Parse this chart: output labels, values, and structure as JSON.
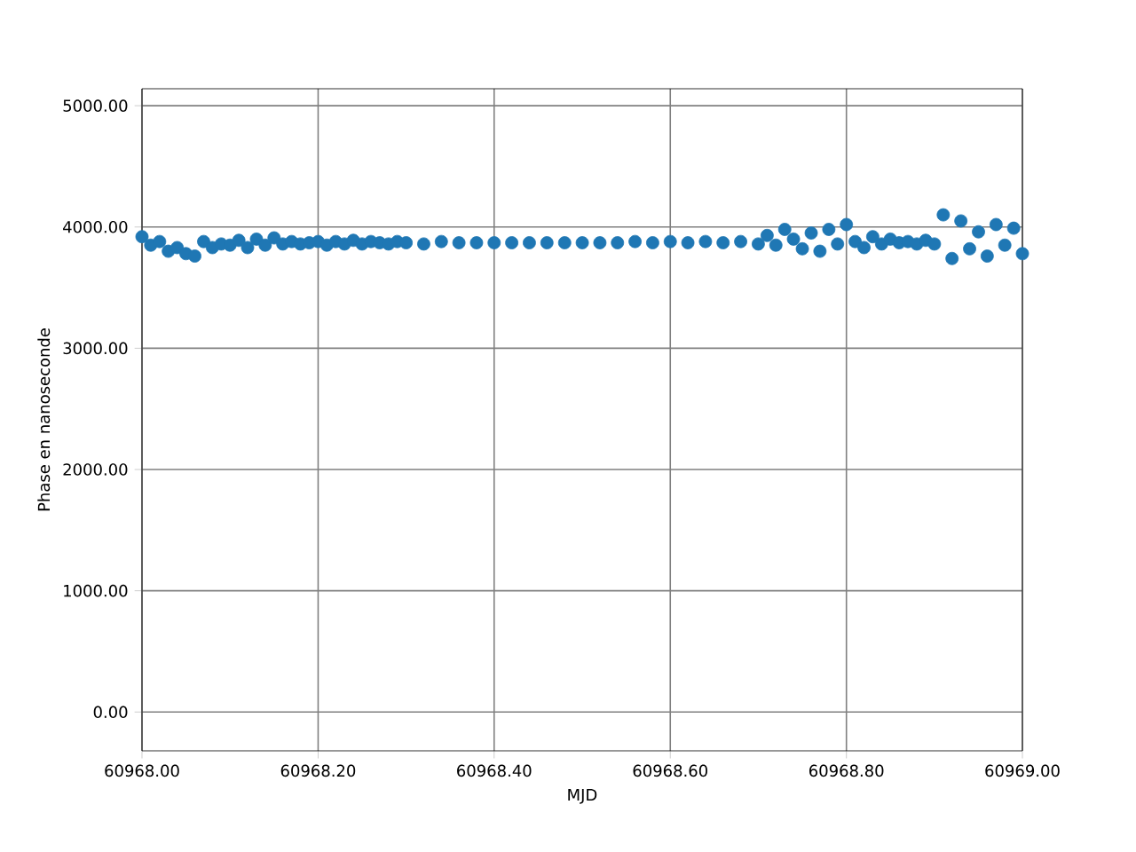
{
  "chart_data": {
    "type": "scatter",
    "xlabel": "MJD",
    "ylabel": "Phase en nanoseconde",
    "xlim": [
      60968.0,
      60969.0
    ],
    "ylim": [
      -320,
      5140
    ],
    "xticks": [
      {
        "value": 60968.0,
        "label": "60968.00"
      },
      {
        "value": 60968.2,
        "label": "60968.20"
      },
      {
        "value": 60968.4,
        "label": "60968.40"
      },
      {
        "value": 60968.6,
        "label": "60968.60"
      },
      {
        "value": 60968.8,
        "label": "60968.80"
      },
      {
        "value": 60969.0,
        "label": "60969.00"
      }
    ],
    "yticks": [
      {
        "value": 0,
        "label": "0.00"
      },
      {
        "value": 1000,
        "label": "1000.00"
      },
      {
        "value": 2000,
        "label": "2000.00"
      },
      {
        "value": 3000,
        "label": "3000.00"
      },
      {
        "value": 4000,
        "label": "4000.00"
      },
      {
        "value": 5000,
        "label": "5000.00"
      }
    ],
    "grid": true,
    "marker": "circle",
    "series": [
      {
        "color": "#1f77b4",
        "x": [
          60968.0,
          60968.01,
          60968.02,
          60968.03,
          60968.04,
          60968.05,
          60968.06,
          60968.07,
          60968.08,
          60968.09,
          60968.1,
          60968.11,
          60968.12,
          60968.13,
          60968.14,
          60968.15,
          60968.16,
          60968.17,
          60968.18,
          60968.19,
          60968.2,
          60968.21,
          60968.22,
          60968.23,
          60968.24,
          60968.25,
          60968.26,
          60968.27,
          60968.28,
          60968.29,
          60968.3,
          60968.32,
          60968.34,
          60968.36,
          60968.38,
          60968.4,
          60968.42,
          60968.44,
          60968.46,
          60968.48,
          60968.5,
          60968.52,
          60968.54,
          60968.56,
          60968.58,
          60968.6,
          60968.62,
          60968.64,
          60968.66,
          60968.68,
          60968.7,
          60968.71,
          60968.72,
          60968.73,
          60968.74,
          60968.75,
          60968.76,
          60968.77,
          60968.78,
          60968.79,
          60968.8,
          60968.81,
          60968.82,
          60968.83,
          60968.84,
          60968.85,
          60968.86,
          60968.87,
          60968.88,
          60968.89,
          60968.9,
          60968.91,
          60968.92,
          60968.93,
          60968.94,
          60968.95,
          60968.96,
          60968.97,
          60968.98,
          60968.99,
          60969.0
        ],
        "values": [
          3920,
          3850,
          3880,
          3800,
          3830,
          3780,
          3760,
          3880,
          3830,
          3860,
          3850,
          3890,
          3830,
          3900,
          3850,
          3910,
          3860,
          3880,
          3860,
          3870,
          3880,
          3850,
          3880,
          3860,
          3890,
          3860,
          3880,
          3870,
          3860,
          3880,
          3870,
          3860,
          3880,
          3870,
          3870,
          3870,
          3870,
          3870,
          3870,
          3870,
          3870,
          3870,
          3870,
          3880,
          3870,
          3880,
          3870,
          3880,
          3870,
          3880,
          3860,
          3930,
          3850,
          3980,
          3900,
          3820,
          3950,
          3800,
          3980,
          3860,
          4020,
          3880,
          3830,
          3920,
          3860,
          3900,
          3870,
          3880,
          3860,
          3890,
          3860,
          4100,
          3740,
          4050,
          3820,
          3960,
          3760,
          4020,
          3850,
          3990,
          3780
        ]
      }
    ]
  }
}
